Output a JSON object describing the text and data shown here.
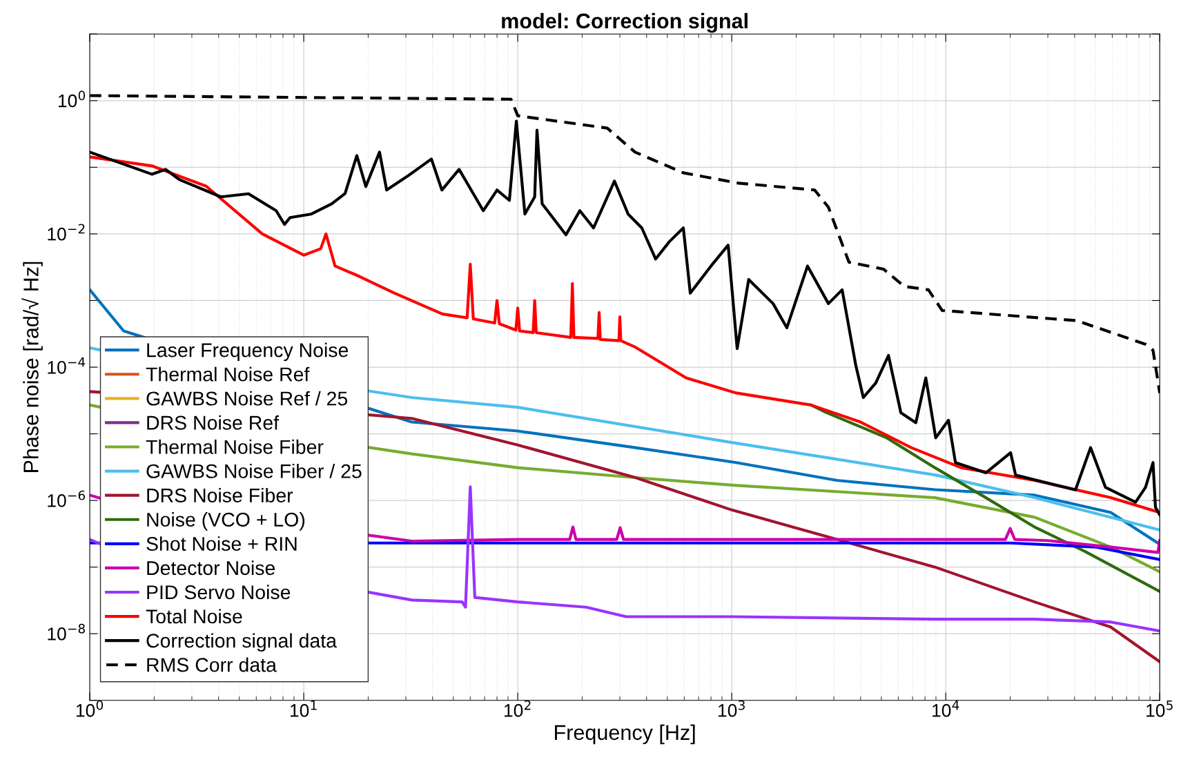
{
  "chart_data": {
    "type": "line",
    "title": "model: Correction signal",
    "xlabel": "Frequency [Hz]",
    "ylabel": "Phase noise [rad/√ Hz]",
    "log": "xy",
    "grid": true,
    "legend": "bottom left",
    "line_style": "solid",
    "xlim": [
      1,
      100000
    ],
    "xticks": [
      {
        "value": 1,
        "label": "10$^{0}$"
      },
      {
        "value": 10,
        "label": "10$^{1}$"
      },
      {
        "value": 100,
        "label": "10$^{2}$"
      },
      {
        "value": 1000,
        "label": "10$^{3}$"
      },
      {
        "value": 10000,
        "label": "10$^{4}$"
      },
      {
        "value": 100000,
        "label": "10$^{5}$"
      }
    ],
    "ylim": [
      1e-09,
      10
    ],
    "yticks": [
      {
        "value": 1e-09,
        "label": null
      },
      {
        "value": 1e-08,
        "label": "10$^{−8}$"
      },
      {
        "value": 1e-07,
        "label": null
      },
      {
        "value": 1e-06,
        "label": "10$^{−6}$"
      },
      {
        "value": 1e-05,
        "label": null
      },
      {
        "value": 0.0001,
        "label": "10$^{−4}$"
      },
      {
        "value": 0.001,
        "label": null
      },
      {
        "value": 0.01,
        "label": "10$^{−2}$"
      },
      {
        "value": 0.1,
        "label": null
      },
      {
        "value": 1,
        "label": "10$^{0}$"
      },
      {
        "value": 10,
        "label": null
      }
    ],
    "series": [
      {
        "name": "Laser Frequency Noise",
        "color": "#0072bd",
        "x": [
          1,
          1.44,
          32,
          100,
          355,
          1050,
          3100,
          8900,
          26000,
          59000,
          100000
        ],
        "values": [
          0.00145,
          0.00035,
          1.5e-05,
          1.1e-05,
          6.2e-06,
          3.7e-06,
          2e-06,
          1.45e-06,
          1.2e-06,
          6.6e-07,
          2.2e-07
        ]
      },
      {
        "name": "Thermal Noise Ref",
        "color": "#d95319"
      },
      {
        "name": "GAWBS Noise Ref / 25",
        "color": "#edb120"
      },
      {
        "name": "DRS Noise Ref",
        "color": "#7e2f8e"
      },
      {
        "name": "Thermal Noise Fiber",
        "color": "#77ac30",
        "x": [
          1,
          1.13,
          32,
          100,
          355,
          1000,
          8900,
          26000,
          59000,
          100000
        ],
        "values": [
          2.7e-05,
          2.5e-05,
          5e-06,
          3.1e-06,
          2.2e-06,
          1.7e-06,
          1.1e-06,
          5.6e-07,
          2e-07,
          8.5e-08
        ]
      },
      {
        "name": "GAWBS Noise Fiber / 25",
        "color": "#4dbeee",
        "x": [
          1,
          1.13,
          32,
          100,
          1000,
          9000,
          26000,
          59000,
          100000
        ],
        "values": [
          0.000195,
          0.00018,
          3.5e-05,
          2.5e-05,
          7.4e-06,
          2.4e-06,
          1.1e-06,
          5.6e-07,
          3.6e-07
        ]
      },
      {
        "name": "DRS Noise Fiber",
        "color": "#a2142f",
        "x": [
          1,
          1.13,
          32,
          100,
          355,
          1000,
          3100,
          8900,
          26000,
          59000,
          100000
        ],
        "values": [
          4.3e-05,
          4.2e-05,
          1.7e-05,
          6.8e-06,
          2.2e-06,
          7.2e-07,
          2.6e-07,
          1e-07,
          3e-08,
          1.26e-08,
          3.8e-09
        ]
      },
      {
        "name": "Noise (VCO + LO)",
        "color": "#2e6b0c",
        "x": [
          2350,
          2750,
          5300,
          8900,
          15400,
          26000,
          45000,
          100000
        ],
        "values": [
          2.7e-05,
          2.1e-05,
          8.7e-06,
          3.1e-06,
          1.1e-06,
          4e-07,
          1.7e-07,
          4.3e-08
        ]
      },
      {
        "name": "Shot Noise + RIN",
        "color": "#0000ff",
        "x": [
          1,
          32,
          100,
          1000,
          10000,
          20000,
          50000,
          100000
        ],
        "values": [
          2.3e-07,
          2.3e-07,
          2.3e-07,
          2.3e-07,
          2.3e-07,
          2.3e-07,
          2e-07,
          1.3e-07
        ]
      },
      {
        "name": "Detector Noise",
        "color": "#cc00aa",
        "x": [
          1,
          1.13,
          32,
          100,
          175,
          181,
          187,
          290,
          301,
          312,
          1000,
          19000,
          20000,
          21000,
          30000,
          59000,
          98000,
          100000
        ],
        "values": [
          1.2e-06,
          1.07e-06,
          2.45e-07,
          2.6e-07,
          2.6e-07,
          4e-07,
          2.6e-07,
          2.6e-07,
          3.9e-07,
          2.6e-07,
          2.6e-07,
          2.6e-07,
          3.8e-07,
          2.6e-07,
          2.5e-07,
          2e-07,
          1.66e-07,
          2.5e-07
        ]
      },
      {
        "name": "PID Servo Noise",
        "color": "#9933ff",
        "x": [
          1,
          1.13,
          32,
          55,
          57,
          60,
          63,
          100,
          209,
          321,
          1000,
          8900,
          26000,
          59000,
          100000
        ],
        "values": [
          2.6e-07,
          2.2e-07,
          3.2e-08,
          3e-08,
          2.5e-08,
          1.6e-06,
          3.5e-08,
          3e-08,
          2.5e-08,
          1.8e-08,
          1.8e-08,
          1.65e-08,
          1.65e-08,
          1.5e-08,
          1.1e-08
        ]
      },
      {
        "name": "Total Noise",
        "color": "#ff0000",
        "x": [
          1,
          1.95,
          3.5,
          6.4,
          10,
          12.0,
          12.7,
          14,
          18.2,
          26.4,
          44.4,
          58,
          60,
          62,
          78,
          80,
          82,
          98,
          100,
          102,
          118,
          120,
          122,
          177,
          180,
          183,
          237,
          240,
          243,
          297,
          300,
          303,
          354,
          612,
          1050,
          2350,
          4000,
          6900,
          11800,
          26000,
          59000,
          100000
        ],
        "values": [
          0.143,
          0.105,
          0.052,
          0.01,
          0.0048,
          0.006,
          0.01,
          0.0033,
          0.0023,
          0.0013,
          0.00063,
          0.00055,
          0.0035,
          0.00053,
          0.00046,
          0.001,
          0.00045,
          0.00036,
          0.00077,
          0.00035,
          0.00033,
          0.001,
          0.00033,
          0.00028,
          0.0018,
          0.00028,
          0.00027,
          0.00066,
          0.00026,
          0.00025,
          0.00057,
          0.00025,
          0.0002,
          6.9e-05,
          4.1e-05,
          2.7e-05,
          1.5e-05,
          6.2e-06,
          3.1e-06,
          2e-06,
          1.1e-06,
          6.6e-07
        ]
      },
      {
        "name": "Correction signal data",
        "color": "#000000",
        "x": [
          1,
          1.95,
          2.26,
          2.63,
          4.1,
          5.52,
          7.43,
          8.13,
          8.63,
          10.8,
          13.5,
          15.6,
          17.7,
          19.5,
          22.6,
          24.4,
          30.5,
          39.5,
          44.2,
          53.2,
          69,
          80,
          91.4,
          98.5,
          108,
          120,
          123,
          130,
          168,
          195,
          226,
          283,
          328,
          380,
          441,
          512,
          594,
          640,
          800,
          962,
          1060,
          1200,
          1560,
          1810,
          2260,
          2830,
          3280,
          3800,
          4120,
          4710,
          5400,
          6170,
          7250,
          8070,
          8980,
          10300,
          11100,
          15400,
          20100,
          21200,
          40400,
          47500,
          55800,
          77100,
          85800,
          93000,
          95500,
          100000
        ],
        "values": [
          0.169,
          0.0787,
          0.093,
          0.065,
          0.036,
          0.04,
          0.0223,
          0.0139,
          0.0176,
          0.0198,
          0.0283,
          0.0404,
          0.15,
          0.0514,
          0.169,
          0.0456,
          0.0734,
          0.133,
          0.0456,
          0.093,
          0.0223,
          0.0456,
          0.0319,
          0.492,
          0.0199,
          0.036,
          0.361,
          0.0283,
          0.0097,
          0.0223,
          0.0123,
          0.062,
          0.0198,
          0.0123,
          0.0042,
          0.0077,
          0.0123,
          0.00129,
          0.0033,
          0.0068,
          0.00019,
          0.00207,
          0.0009,
          0.00039,
          0.0033,
          0.0009,
          0.00145,
          0.000106,
          3.5e-05,
          5.8e-05,
          0.00015,
          2.07e-05,
          1.47e-05,
          6.9e-05,
          8.7e-06,
          1.6e-05,
          3.7e-06,
          2.6e-06,
          5.2e-06,
          2.4e-06,
          1.44e-06,
          6.2e-06,
          1.57e-06,
          9.4e-07,
          1.57e-06,
          3.7e-06,
          7.9e-07,
          6.1e-07
        ]
      },
      {
        "name": "RMS Corr data",
        "color": "#000000",
        "line_style": "dashed",
        "x": [
          1,
          93,
          100,
          262,
          353,
          594,
          1076,
          2440,
          2830,
          3530,
          5120,
          6400,
          8300,
          9620,
          40900,
          86100,
          93000,
          100000
        ],
        "values": [
          1.19,
          1.05,
          0.594,
          0.387,
          0.169,
          0.0826,
          0.0578,
          0.0456,
          0.0251,
          0.00376,
          0.00296,
          0.00163,
          0.00145,
          0.00071,
          0.0005,
          0.00022,
          0.00018,
          4.1e-05
        ]
      }
    ]
  }
}
